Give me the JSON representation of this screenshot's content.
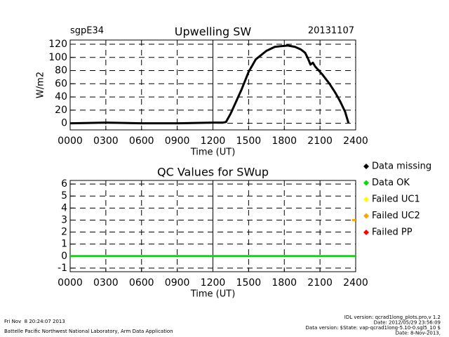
{
  "chart_data": [
    {
      "type": "line",
      "title": "Upwelling SW",
      "site": "sgpE34",
      "date": "20131107",
      "xlabel": "Time (UT)",
      "ylabel": "W/m2",
      "color": "#000000",
      "x": [
        0,
        3,
        6,
        9,
        12,
        12.8,
        13.1,
        13.5,
        14.0,
        14.4,
        15.0,
        15.6,
        16.5,
        17.2,
        17.7,
        18.3,
        18.9,
        19.4,
        19.75,
        20.0,
        20.2,
        20.4,
        20.6,
        21.2,
        21.8,
        22.3,
        22.7,
        23.1,
        23.4
      ],
      "values": [
        0,
        1,
        0,
        0,
        1,
        1,
        2,
        15,
        35,
        51,
        78,
        97,
        110,
        116,
        117,
        118,
        116,
        112,
        107,
        98,
        89,
        92,
        86,
        74,
        60,
        46,
        33,
        18,
        0
      ],
      "xlim": [
        0,
        24
      ],
      "ylim": [
        -10,
        126.4
      ],
      "xticks": [
        {
          "value": 0,
          "label": "0000"
        },
        {
          "value": 3,
          "label": "0300"
        },
        {
          "value": 6,
          "label": "0600"
        },
        {
          "value": 9,
          "label": "0900"
        },
        {
          "value": 12,
          "label": "1200"
        },
        {
          "value": 15,
          "label": "1500"
        },
        {
          "value": 18,
          "label": "1800"
        },
        {
          "value": 21,
          "label": "2100"
        },
        {
          "value": 24,
          "label": "2400"
        }
      ],
      "yticks": [
        0,
        20,
        40,
        60,
        80,
        100,
        120
      ],
      "grid": true
    },
    {
      "type": "line",
      "title": "QC Values for SWup",
      "xlabel": "Time (UT)",
      "xlim": [
        0,
        24
      ],
      "ylim": [
        -1.3,
        6.3
      ],
      "xticks": [
        {
          "value": 0,
          "label": "0000"
        },
        {
          "value": 3,
          "label": "0300"
        },
        {
          "value": 6,
          "label": "0600"
        },
        {
          "value": 9,
          "label": "0900"
        },
        {
          "value": 12,
          "label": "1200"
        },
        {
          "value": 15,
          "label": "1500"
        },
        {
          "value": 18,
          "label": "1800"
        },
        {
          "value": 21,
          "label": "2100"
        },
        {
          "value": 24,
          "label": "2400"
        }
      ],
      "yticks": [
        -1,
        0,
        1,
        2,
        3,
        4,
        5,
        6
      ],
      "grid": true,
      "legend": "right",
      "series": [
        {
          "name": "Data missing",
          "color": "#000000",
          "x": [],
          "values": []
        },
        {
          "name": "Data OK",
          "color": "#00e000",
          "x": [
            0,
            24
          ],
          "values": [
            0,
            0
          ]
        },
        {
          "name": "Failed UC1",
          "color": "#ffff00",
          "x": [],
          "values": []
        },
        {
          "name": "Failed UC2",
          "color": "#ffa500",
          "x": [
            23.7,
            24
          ],
          "values": [
            3,
            3
          ]
        },
        {
          "name": "Failed PP",
          "color": "#ff0000",
          "x": [],
          "values": []
        }
      ]
    }
  ],
  "footer": {
    "left": [
      "Fri Nov  8 20:24:07 2013",
      "Battelle Pacific Northwest National Laboratory, Arm Data Application"
    ],
    "right": [
      "IDL version: qcrad1long_plots.pro,v 1.2",
      "Date: 2012/05/29 23:56:09",
      "Data version: $State: vap-qcrad1long-5.10-0.sgl5_10 $",
      "Date: 8-Nov-2013,"
    ]
  }
}
